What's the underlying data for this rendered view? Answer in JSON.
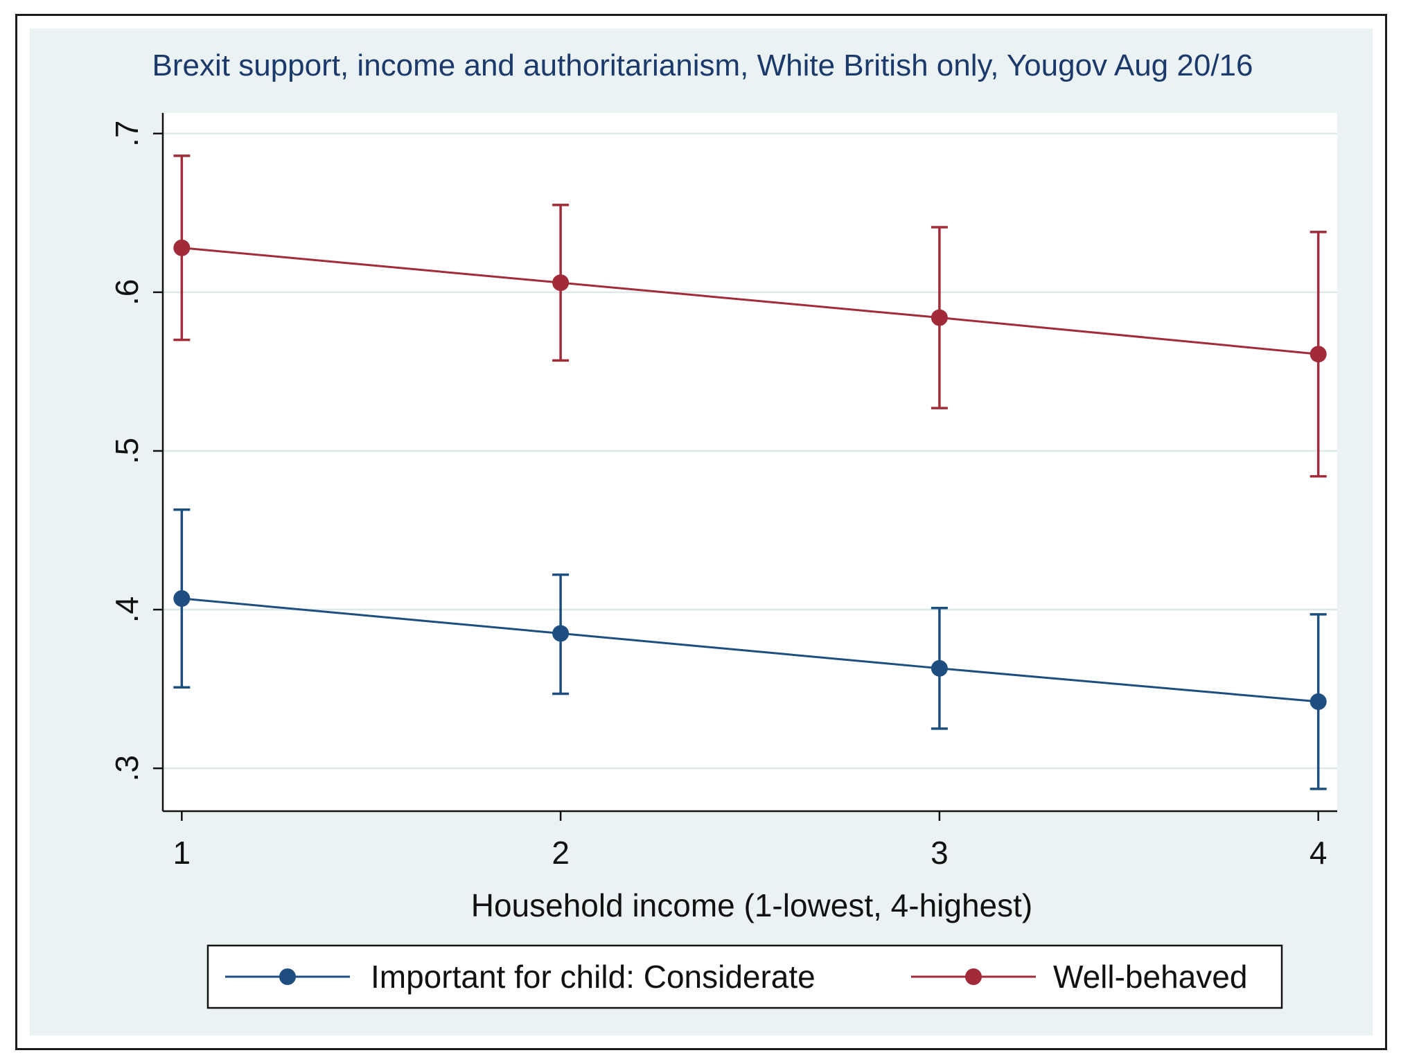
{
  "chart_data": {
    "type": "line",
    "title": "Brexit support, income and authoritarianism, White British only, Yougov Aug 20/16",
    "xlabel": "Household income (1-lowest, 4-highest)",
    "ylabel": "",
    "x": [
      1,
      2,
      3,
      4
    ],
    "x_tick_labels": [
      "1",
      "2",
      "3",
      "4"
    ],
    "xlim": [
      0.95,
      4.05
    ],
    "y_ticks": [
      0.3,
      0.4,
      0.5,
      0.6,
      0.7
    ],
    "y_tick_labels": [
      ".3",
      ".4",
      ".5",
      ".6",
      ".7"
    ],
    "ylim": [
      0.273,
      0.713
    ],
    "grid": "horizontal",
    "legend_position": "bottom",
    "series": [
      {
        "name": "Important for child: Considerate",
        "color": "#1d4e7f",
        "values": [
          0.407,
          0.385,
          0.363,
          0.342
        ],
        "ci_lower": [
          0.351,
          0.347,
          0.325,
          0.287
        ],
        "ci_upper": [
          0.463,
          0.422,
          0.401,
          0.397
        ]
      },
      {
        "name": "Well-behaved",
        "color": "#a22b3a",
        "values": [
          0.628,
          0.606,
          0.584,
          0.561
        ],
        "ci_lower": [
          0.57,
          0.557,
          0.527,
          0.484
        ],
        "ci_upper": [
          0.686,
          0.655,
          0.641,
          0.638
        ]
      }
    ]
  },
  "colors": {
    "outer_background": "#eaf2f3",
    "plot_background": "#ffffff",
    "gridline": "#dde8ea",
    "title_color": "#1b3a6b"
  }
}
